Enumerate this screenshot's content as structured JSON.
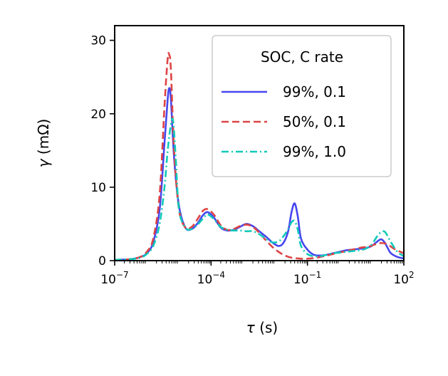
{
  "chart_data": {
    "type": "line",
    "xlabel_symbol": "τ",
    "xlabel_unit": "(s)",
    "ylabel_symbol": "γ",
    "ylabel_unit": "(mΩ)",
    "x_scale": "log",
    "xlim": [
      1e-07,
      100
    ],
    "ylim": [
      0,
      32
    ],
    "x_ticks": [
      {
        "value": 1e-07,
        "base": "10",
        "exp": "−7"
      },
      {
        "value": 0.0001,
        "base": "10",
        "exp": "−4"
      },
      {
        "value": 0.1,
        "base": "10",
        "exp": "−1"
      },
      {
        "value": 100,
        "base": "10",
        "exp": "2"
      }
    ],
    "y_ticks": [
      {
        "value": 0,
        "label": "0"
      },
      {
        "value": 10,
        "label": "10"
      },
      {
        "value": 20,
        "label": "20"
      },
      {
        "value": 30,
        "label": "30"
      }
    ],
    "grid": false,
    "legend": {
      "title": "SOC, C rate",
      "placement": "top-right"
    },
    "series": [
      {
        "name": "99%, 0.1",
        "color": "#4646ee",
        "dash": "solid",
        "log10_x": [
          -7,
          -6.5,
          -6.2,
          -6.0,
          -5.8,
          -5.6,
          -5.45,
          -5.35,
          -5.3,
          -5.25,
          -5.15,
          -5.0,
          -4.8,
          -4.6,
          -4.4,
          -4.25,
          -4.1,
          -3.9,
          -3.7,
          -3.5,
          -3.3,
          -3.1,
          -2.9,
          -2.7,
          -2.5,
          -2.3,
          -2.1,
          -1.9,
          -1.75,
          -1.6,
          -1.5,
          -1.4,
          -1.3,
          -1.2,
          -1.0,
          -0.8,
          -0.6,
          -0.4,
          -0.2,
          0.0,
          0.2,
          0.4,
          0.6,
          0.8,
          1.0,
          1.2,
          1.3,
          1.4,
          1.5,
          1.6,
          1.8,
          2.0
        ],
        "values": [
          0.1,
          0.2,
          0.5,
          1.0,
          2.5,
          7.0,
          16.0,
          22.0,
          23.5,
          22.0,
          14.0,
          7.5,
          4.5,
          4.3,
          5.2,
          6.2,
          6.6,
          5.8,
          4.5,
          4.1,
          4.2,
          4.6,
          5.0,
          4.7,
          4.0,
          3.3,
          2.5,
          2.0,
          2.4,
          4.0,
          6.5,
          7.8,
          6.0,
          3.0,
          1.5,
          0.8,
          0.7,
          0.8,
          1.0,
          1.2,
          1.4,
          1.5,
          1.6,
          1.7,
          2.0,
          2.7,
          2.9,
          2.5,
          1.7,
          1.0,
          0.5,
          0.3
        ]
      },
      {
        "name": "50%, 0.1",
        "color": "#dd4444",
        "dash": "dashed",
        "log10_x": [
          -7,
          -6.5,
          -6.2,
          -6.0,
          -5.8,
          -5.6,
          -5.45,
          -5.35,
          -5.3,
          -5.25,
          -5.15,
          -5.0,
          -4.8,
          -4.6,
          -4.4,
          -4.25,
          -4.1,
          -3.9,
          -3.7,
          -3.5,
          -3.3,
          -3.1,
          -2.9,
          -2.7,
          -2.5,
          -2.3,
          -2.1,
          -1.9,
          -1.7,
          -1.5,
          -1.3,
          -1.1,
          -0.9,
          -0.7,
          -0.5,
          -0.3,
          -0.1,
          0.1,
          0.3,
          0.5,
          0.7,
          0.9,
          1.1,
          1.3,
          1.5,
          1.7,
          2.0
        ],
        "values": [
          0.1,
          0.2,
          0.5,
          1.2,
          3.0,
          9.0,
          21.0,
          27.5,
          28.0,
          26.0,
          15.0,
          7.0,
          4.5,
          4.6,
          5.8,
          6.8,
          7.0,
          6.2,
          4.8,
          4.2,
          4.3,
          4.7,
          4.9,
          4.6,
          3.8,
          2.8,
          1.9,
          1.2,
          0.7,
          0.4,
          0.3,
          0.25,
          0.3,
          0.4,
          0.6,
          0.8,
          1.0,
          1.2,
          1.4,
          1.6,
          1.8,
          1.9,
          2.2,
          2.4,
          2.2,
          1.6,
          1.0
        ]
      },
      {
        "name": "99%, 1.0",
        "color": "#11c9b9",
        "dash": "dashdot",
        "log10_x": [
          -7,
          -6.5,
          -6.2,
          -6.0,
          -5.8,
          -5.6,
          -5.45,
          -5.35,
          -5.25,
          -5.18,
          -5.1,
          -5.0,
          -4.8,
          -4.6,
          -4.4,
          -4.2,
          -4.1,
          -3.9,
          -3.7,
          -3.5,
          -3.3,
          -3.1,
          -2.9,
          -2.7,
          -2.5,
          -2.3,
          -2.1,
          -1.9,
          -1.75,
          -1.6,
          -1.5,
          -1.4,
          -1.3,
          -1.2,
          -1.0,
          -0.8,
          -0.6,
          -0.4,
          -0.2,
          0.0,
          0.2,
          0.4,
          0.6,
          0.8,
          1.0,
          1.2,
          1.35,
          1.45,
          1.6,
          1.8,
          2.0
        ],
        "values": [
          0.1,
          0.2,
          0.4,
          0.9,
          2.0,
          5.0,
          10.0,
          15.0,
          18.5,
          19.0,
          14.0,
          7.0,
          4.5,
          4.3,
          5.0,
          6.0,
          6.3,
          5.6,
          4.6,
          4.2,
          4.1,
          4.1,
          4.0,
          4.0,
          3.6,
          3.0,
          2.5,
          2.6,
          3.3,
          4.3,
          5.2,
          5.4,
          4.2,
          2.0,
          0.9,
          0.6,
          0.6,
          0.8,
          1.0,
          1.1,
          1.2,
          1.3,
          1.4,
          1.6,
          2.2,
          3.5,
          4.0,
          3.7,
          2.5,
          1.2,
          0.6
        ]
      }
    ]
  }
}
